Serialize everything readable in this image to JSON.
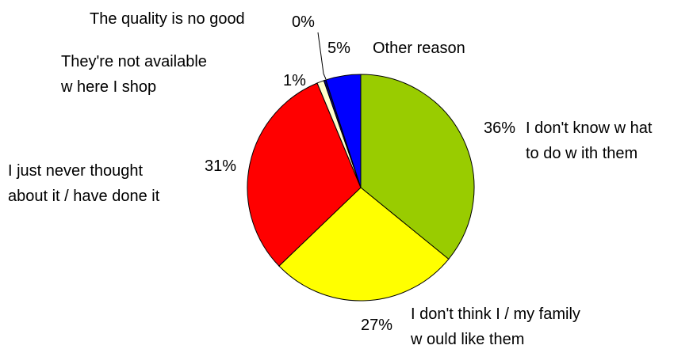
{
  "chart_data": {
    "type": "pie",
    "title": "",
    "slices": [
      {
        "label": "I don't know w hat to do w ith them",
        "label_lines": [
          "I don't know  w hat",
          "to do w ith them"
        ],
        "percent_label": "36%",
        "value": 36,
        "color": "#99CC00"
      },
      {
        "label": "I don't think I / my family w ould like them",
        "label_lines": [
          "I don't think I / my family",
          "w ould like them"
        ],
        "percent_label": "27%",
        "value": 27,
        "color": "#FFFF00"
      },
      {
        "label": "I just never thought about it / have done it",
        "label_lines": [
          "I just never thought",
          "about it / have done it"
        ],
        "percent_label": "31%",
        "value": 31,
        "color": "#FF0000"
      },
      {
        "label": "They're not available w here I shop",
        "label_lines": [
          "They're not available",
          "w here I shop"
        ],
        "percent_label": "1%",
        "value": 1,
        "color": "#FFFFCC"
      },
      {
        "label": "The quality is no good",
        "label_lines": [
          "The quality is no good"
        ],
        "percent_label": "0%",
        "value": 0.3,
        "color": "#000080"
      },
      {
        "label": "Other reason",
        "label_lines": [
          "Other reason"
        ],
        "percent_label": "5%",
        "value": 5,
        "color": "#0000FF"
      }
    ],
    "start_angle_deg": 0,
    "direction": "clockwise",
    "legend": "none"
  }
}
